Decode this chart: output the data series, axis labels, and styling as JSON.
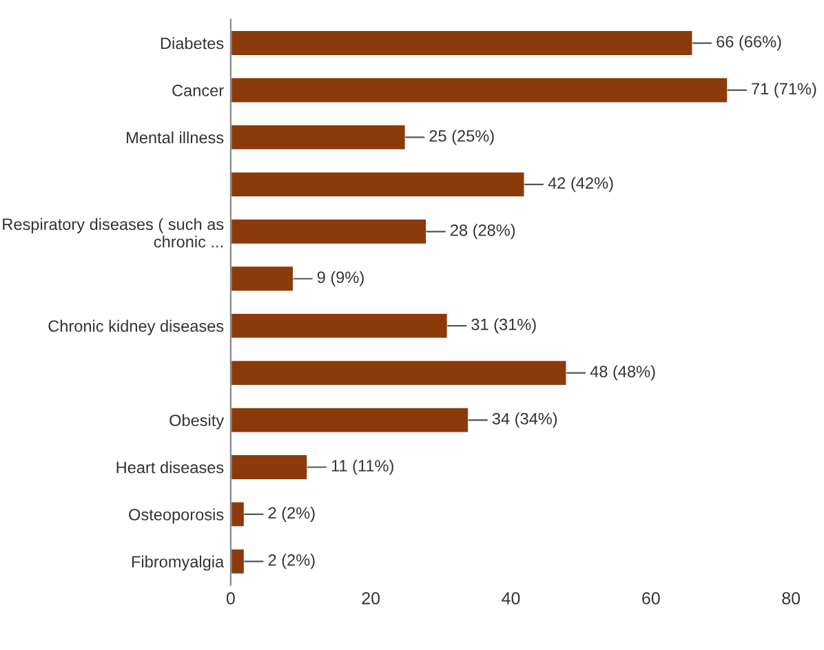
{
  "chart_data": {
    "type": "bar",
    "orientation": "horizontal",
    "categories": [
      "Diabetes",
      "Cancer",
      "Mental illness",
      null,
      "Respiratory diseases ( such as\nchronic ...",
      null,
      "Chronic kidney diseases",
      null,
      "Obesity",
      "Heart diseases",
      "Osteoporosis",
      "Fibromyalgia"
    ],
    "values": [
      66,
      71,
      25,
      42,
      28,
      9,
      31,
      48,
      34,
      11,
      2,
      2
    ],
    "value_labels": [
      "66 (66%)",
      "71 (71%)",
      "25 (25%)",
      "42 (42%)",
      "28 (28%)",
      "9 (9%)",
      "31 (31%)",
      "48 (48%)",
      "34 (34%)",
      "11 (11%)",
      "2 (2%)",
      "2 (2%)"
    ],
    "color": "#8b3a0a",
    "xlim": [
      0,
      80
    ],
    "xticks": [
      0,
      20,
      40,
      60,
      80
    ],
    "grid": false
  }
}
